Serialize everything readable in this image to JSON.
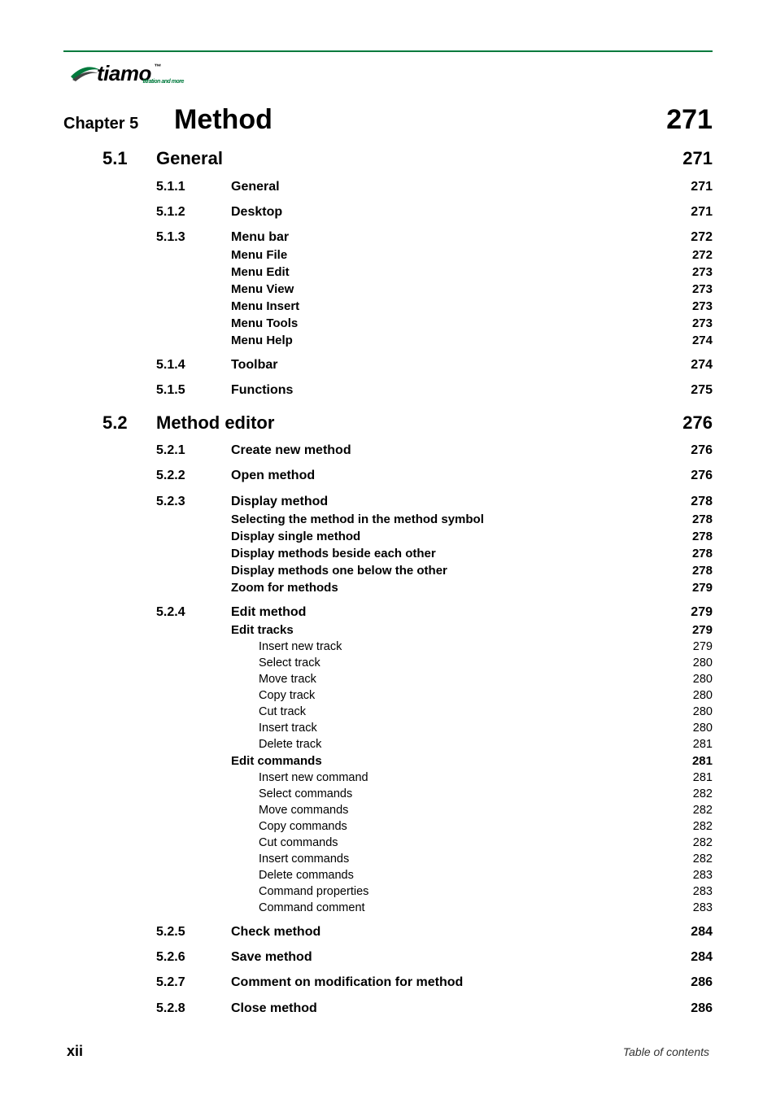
{
  "logo": {
    "text": "tiamo",
    "tm": "™",
    "sub": "titration and more"
  },
  "colors": {
    "accent": "#007a3d",
    "text": "#000000",
    "background": "#ffffff"
  },
  "toc": [
    {
      "level": "chapter",
      "label": "Chapter 5",
      "title": "Method",
      "page": "271"
    },
    {
      "level": "section",
      "label": "5.1",
      "title": "General",
      "page": "271"
    },
    {
      "level": "sub",
      "label": "5.1.1",
      "title": "General",
      "page": "271"
    },
    {
      "level": "sub",
      "label": "5.1.2",
      "title": "Desktop",
      "page": "271"
    },
    {
      "level": "sub",
      "label": "5.1.3",
      "title": "Menu bar",
      "page": "272"
    },
    {
      "level": "item",
      "label": "",
      "title": "Menu File",
      "page": "272"
    },
    {
      "level": "item",
      "label": "",
      "title": "Menu Edit",
      "page": "273"
    },
    {
      "level": "item",
      "label": "",
      "title": "Menu View",
      "page": "273"
    },
    {
      "level": "item",
      "label": "",
      "title": "Menu Insert",
      "page": "273"
    },
    {
      "level": "item",
      "label": "",
      "title": "Menu Tools",
      "page": "273"
    },
    {
      "level": "item",
      "label": "",
      "title": "Menu Help",
      "page": "274"
    },
    {
      "level": "sub",
      "label": "5.1.4",
      "title": "Toolbar",
      "page": "274"
    },
    {
      "level": "sub",
      "label": "5.1.5",
      "title": "Functions",
      "page": "275"
    },
    {
      "level": "section",
      "label": "5.2",
      "title": "Method editor",
      "page": "276"
    },
    {
      "level": "sub",
      "label": "5.2.1",
      "title": "Create new method",
      "page": "276"
    },
    {
      "level": "sub",
      "label": "5.2.2",
      "title": "Open method",
      "page": "276"
    },
    {
      "level": "sub",
      "label": "5.2.3",
      "title": "Display method",
      "page": "278"
    },
    {
      "level": "item",
      "label": "",
      "title": "Selecting the method in the method symbol",
      "page": "278"
    },
    {
      "level": "item",
      "label": "",
      "title": "Display single method",
      "page": "278"
    },
    {
      "level": "item",
      "label": "",
      "title": "Display methods beside each other",
      "page": "278"
    },
    {
      "level": "item",
      "label": "",
      "title": "Display methods one below the other",
      "page": "278"
    },
    {
      "level": "item",
      "label": "",
      "title": "Zoom for methods",
      "page": "279"
    },
    {
      "level": "sub",
      "label": "5.2.4",
      "title": "Edit method",
      "page": "279"
    },
    {
      "level": "item",
      "label": "",
      "title": "Edit tracks",
      "page": "279"
    },
    {
      "level": "subitem",
      "label": "",
      "title": "Insert new track",
      "page": "279"
    },
    {
      "level": "subitem",
      "label": "",
      "title": "Select track",
      "page": "280"
    },
    {
      "level": "subitem",
      "label": "",
      "title": "Move track",
      "page": "280"
    },
    {
      "level": "subitem",
      "label": "",
      "title": "Copy track",
      "page": "280"
    },
    {
      "level": "subitem",
      "label": "",
      "title": "Cut track",
      "page": "280"
    },
    {
      "level": "subitem",
      "label": "",
      "title": "Insert track",
      "page": "280"
    },
    {
      "level": "subitem",
      "label": "",
      "title": "Delete track",
      "page": "281"
    },
    {
      "level": "item",
      "label": "",
      "title": "Edit commands",
      "page": "281"
    },
    {
      "level": "subitem",
      "label": "",
      "title": "Insert new command",
      "page": "281"
    },
    {
      "level": "subitem",
      "label": "",
      "title": "Select commands",
      "page": "282"
    },
    {
      "level": "subitem",
      "label": "",
      "title": "Move commands",
      "page": "282"
    },
    {
      "level": "subitem",
      "label": "",
      "title": "Copy commands",
      "page": "282"
    },
    {
      "level": "subitem",
      "label": "",
      "title": "Cut commands",
      "page": "282"
    },
    {
      "level": "subitem",
      "label": "",
      "title": "Insert commands",
      "page": "282"
    },
    {
      "level": "subitem",
      "label": "",
      "title": "Delete commands",
      "page": "283"
    },
    {
      "level": "subitem",
      "label": "",
      "title": "Command properties",
      "page": "283"
    },
    {
      "level": "subitem",
      "label": "",
      "title": "Command comment",
      "page": "283"
    },
    {
      "level": "sub",
      "label": "5.2.5",
      "title": "Check method",
      "page": "284"
    },
    {
      "level": "sub",
      "label": "5.2.6",
      "title": "Save method",
      "page": "284"
    },
    {
      "level": "sub",
      "label": "5.2.7",
      "title": "Comment on modification for method",
      "page": "286"
    },
    {
      "level": "sub",
      "label": "5.2.8",
      "title": "Close method",
      "page": "286"
    }
  ],
  "footer": {
    "page_number": "xii",
    "right": "Table of contents"
  }
}
